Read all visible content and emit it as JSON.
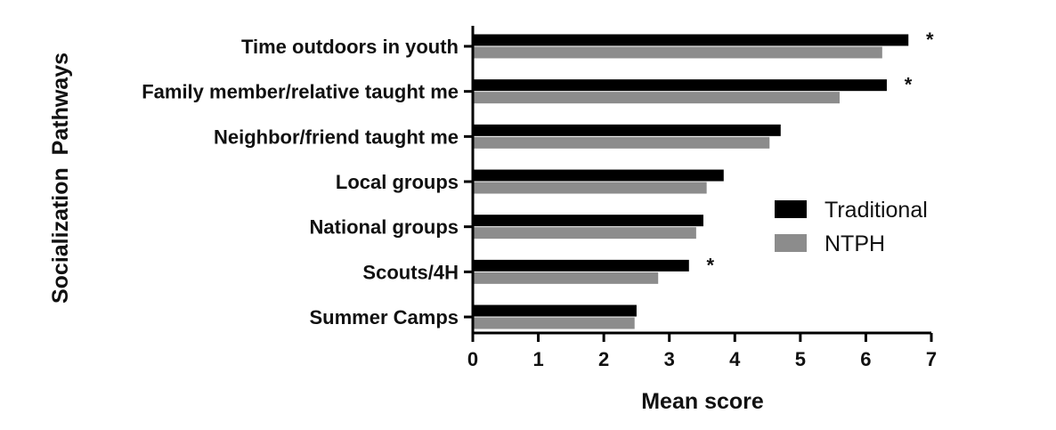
{
  "chart_data": {
    "type": "bar",
    "orientation": "horizontal",
    "categories": [
      "Time outdoors in youth",
      "Family member/relative taught me",
      "Neighbor/friend taught me",
      "Local groups",
      "National groups",
      "Scouts/4H",
      "Summer Camps"
    ],
    "series": [
      {
        "name": "Traditional",
        "color": "#000000",
        "values": [
          6.65,
          6.32,
          4.7,
          3.83,
          3.52,
          3.3,
          2.5
        ]
      },
      {
        "name": "NTPH",
        "color": "#8c8c8c",
        "values": [
          6.25,
          5.6,
          4.53,
          3.57,
          3.41,
          2.83,
          2.47
        ]
      }
    ],
    "significance": [
      "*",
      "*",
      "",
      "",
      "",
      "*",
      ""
    ],
    "xlabel": "Mean score",
    "ylabel": "Socialization  Pathways",
    "xlim": [
      0,
      7
    ],
    "xticks": [
      "0",
      "1",
      "2",
      "3",
      "4",
      "5",
      "6",
      "7"
    ],
    "grid": false,
    "legend_position": "right"
  }
}
